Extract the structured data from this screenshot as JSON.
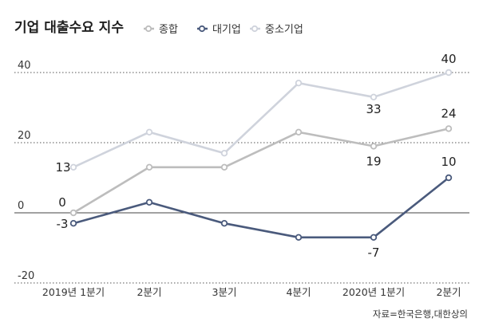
{
  "title": "기업 대출수요 지수",
  "source": "자료=한국은행,대한상의",
  "colors": {
    "종합": "#bdbdbd",
    "대기업": "#4a5a7c",
    "중소기업": "#cfd3dc",
    "highlight": "#f0f0f0",
    "grid": "#555555"
  },
  "chart_data": {
    "type": "line",
    "title": "기업 대출수요 지수",
    "categories": [
      "2019년 1분기",
      "2분기",
      "3분기",
      "4분기",
      "2020년 1분기",
      "2분기"
    ],
    "ylim": [
      -20,
      45
    ],
    "yticks": [
      40,
      20,
      0,
      -20
    ],
    "legend_position": "top",
    "highlight_range": [
      "2020년 1분기",
      "2분기"
    ],
    "series": [
      {
        "name": "종합",
        "color": "#bdbdbd",
        "values": [
          0,
          13,
          13,
          23,
          19,
          24
        ]
      },
      {
        "name": "대기업",
        "color": "#4a5a7c",
        "values": [
          -3,
          3,
          -3,
          -7,
          -7,
          10
        ]
      },
      {
        "name": "중소기업",
        "color": "#cfd3dc",
        "values": [
          13,
          23,
          17,
          37,
          33,
          40
        ]
      }
    ],
    "data_labels": [
      {
        "series": "중소기업",
        "index": 0,
        "text": "13"
      },
      {
        "series": "종합",
        "index": 0,
        "text": "0"
      },
      {
        "series": "대기업",
        "index": 0,
        "text": "-3"
      },
      {
        "series": "중소기업",
        "index": 4,
        "text": "33"
      },
      {
        "series": "종합",
        "index": 4,
        "text": "19"
      },
      {
        "series": "대기업",
        "index": 4,
        "text": "-7"
      },
      {
        "series": "중소기업",
        "index": 5,
        "text": "40"
      },
      {
        "series": "종합",
        "index": 5,
        "text": "24"
      },
      {
        "series": "대기업",
        "index": 5,
        "text": "10"
      }
    ]
  }
}
